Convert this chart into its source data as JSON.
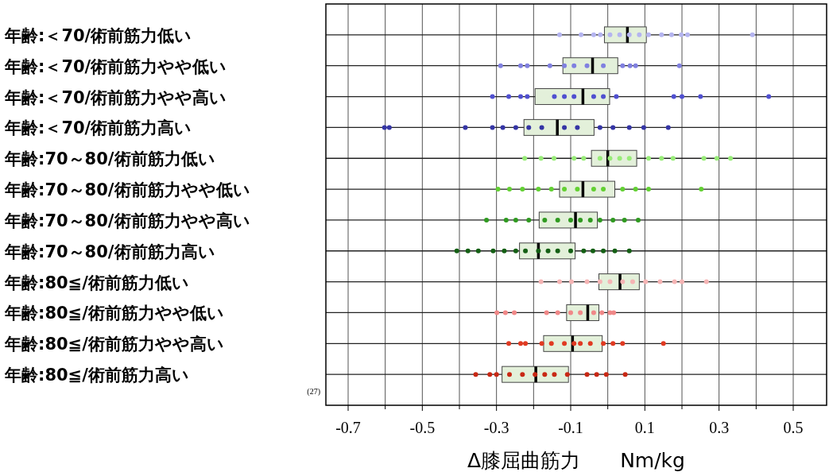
{
  "chart_data": {
    "type": "box",
    "orientation": "horizontal",
    "categories": [
      "年齢:＜70/術前筋力低い",
      "年齢:＜70/術前筋力やや低い",
      "年齢:＜70/術前筋力やや高い",
      "年齢:＜70/術前筋力高い",
      "年齢:70～80/術前筋力低い",
      "年齢:70～80/術前筋力やや低い",
      "年齢:70～80/術前筋力やや高い",
      "年齢:70～80/術前筋力高い",
      "年齢:80≦/術前筋力低い",
      "年齢:80≦/術前筋力やや低い",
      "年齢:80≦/術前筋力やや高い",
      "年齢:80≦/術前筋力高い"
    ],
    "xlabel": "Δ膝屈曲筋力　　Nm/kg",
    "annotations": [
      "(27)"
    ],
    "xlim": [
      -0.76,
      0.59
    ],
    "xticks": [
      -0.7,
      {
        "value": -0.6,
        "label": null
      },
      -0.5,
      {
        "value": -0.4,
        "label": null
      },
      -0.3,
      {
        "value": -0.2,
        "label": null
      },
      -0.1,
      {
        "value": 0,
        "label": null
      },
      0.1,
      {
        "value": 0.2,
        "label": null
      },
      0.3,
      {
        "value": 0.4,
        "label": null
      },
      0.5
    ],
    "grid": true,
    "marker": "circle",
    "series": [
      {
        "type": "box",
        "color": "#e3f0da",
        "boxes": [
          {
            "low": -0.009,
            "q1": -0.009,
            "median": 0.053,
            "q3": 0.104,
            "high": 0.104
          },
          {
            "low": -0.121,
            "q1": -0.121,
            "median": -0.041,
            "q3": 0.027,
            "high": 0.027
          },
          {
            "low": -0.196,
            "q1": -0.196,
            "median": -0.067,
            "q3": 0.005,
            "high": 0.005
          },
          {
            "low": -0.226,
            "q1": -0.226,
            "median": -0.136,
            "q3": -0.037,
            "high": -0.037
          },
          {
            "low": -0.044,
            "q1": -0.044,
            "median": 0.0,
            "q3": 0.078,
            "high": 0.078
          },
          {
            "low": -0.13,
            "q1": -0.13,
            "median": -0.067,
            "q3": 0.019,
            "high": 0.019
          },
          {
            "low": -0.185,
            "q1": -0.185,
            "median": -0.087,
            "q3": -0.028,
            "high": -0.028
          },
          {
            "low": -0.238,
            "q1": -0.238,
            "median": -0.187,
            "q3": -0.088,
            "high": -0.088
          },
          {
            "low": -0.024,
            "q1": -0.024,
            "median": 0.033,
            "q3": 0.085,
            "high": 0.085
          },
          {
            "low": -0.111,
            "q1": -0.111,
            "median": -0.054,
            "q3": -0.024,
            "high": -0.024
          },
          {
            "low": -0.173,
            "q1": -0.173,
            "median": -0.095,
            "q3": -0.015,
            "high": -0.015
          },
          {
            "low": -0.285,
            "q1": -0.285,
            "median": -0.194,
            "q3": -0.106,
            "high": -0.106
          }
        ]
      },
      {
        "type": "scatter",
        "color": "#b4b4f0",
        "x": [
          "年齢:＜70/術前筋力低い",
          "年齢:＜70/術前筋力低い",
          "年齢:＜70/術前筋力低い",
          "年齢:＜70/術前筋力低い",
          "年齢:＜70/術前筋力低い",
          "年齢:＜70/術前筋力低い",
          "年齢:＜70/術前筋力低い",
          "年齢:＜70/術前筋力低い",
          "年齢:＜70/術前筋力低い",
          "年齢:＜70/術前筋力低い",
          "年齢:＜70/術前筋力低い",
          "年齢:＜70/術前筋力低い",
          "年齢:＜70/術前筋力低い",
          "年齢:＜70/術前筋力低い"
        ],
        "values": [
          -0.13,
          -0.072,
          -0.038,
          -0.02,
          0.006,
          0.032,
          0.058,
          0.085,
          0.11,
          0.145,
          0.172,
          0.198,
          0.215,
          0.39
        ]
      },
      {
        "type": "scatter",
        "color": "#8080e0",
        "x": [
          "年齢:＜70/術前筋力やや低い",
          "年齢:＜70/術前筋力やや低い",
          "年齢:＜70/術前筋力やや低い",
          "年齢:＜70/術前筋力やや低い",
          "年齢:＜70/術前筋力やや低い",
          "年齢:＜70/術前筋力やや低い",
          "年齢:＜70/術前筋力やや低い",
          "年齢:＜70/術前筋力やや低い",
          "年齢:＜70/術前筋力やや低い",
          "年齢:＜70/術前筋力やや低い",
          "年齢:＜70/術前筋力やや低い",
          "年齢:＜70/術前筋力やや低い"
        ],
        "values": [
          -0.289,
          -0.235,
          -0.217,
          -0.156,
          -0.117,
          -0.091,
          -0.056,
          -0.012,
          0.04,
          0.06,
          0.075,
          0.193
        ]
      },
      {
        "type": "scatter",
        "color": "#5050d0",
        "x": [
          "年齢:＜70/術前筋力やや高い",
          "年齢:＜70/術前筋力やや高い",
          "年齢:＜70/術前筋力やや高い",
          "年齢:＜70/術前筋力やや高い",
          "年齢:＜70/術前筋力やや高い",
          "年齢:＜70/術前筋力やや高い",
          "年齢:＜70/術前筋力やや高い",
          "年齢:＜70/術前筋力やや高い",
          "年齢:＜70/術前筋力やや高い",
          "年齢:＜70/術前筋力やや高い",
          "年齢:＜70/術前筋力やや高い",
          "年齢:＜70/術前筋力やや高い",
          "年齢:＜70/術前筋力やや高い",
          "年齢:＜70/術前筋力やや高い"
        ],
        "values": [
          -0.311,
          -0.267,
          -0.235,
          -0.217,
          -0.144,
          -0.117,
          -0.091,
          -0.038,
          -0.012,
          0.023,
          0.178,
          0.2,
          0.25,
          0.434
        ]
      },
      {
        "type": "scatter",
        "color": "#3535a5",
        "x": [
          "年齢:＜70/術前筋力高い",
          "年齢:＜70/術前筋力高い",
          "年齢:＜70/術前筋力高い",
          "年齢:＜70/術前筋力高い",
          "年齢:＜70/術前筋力高い",
          "年齢:＜70/術前筋力高い",
          "年齢:＜70/術前筋力高い",
          "年齢:＜70/術前筋力高い",
          "年齢:＜70/術前筋力高い",
          "年齢:＜70/術前筋力高い",
          "年齢:＜70/術前筋力高い",
          "年齢:＜70/術前筋力高い",
          "年齢:＜70/術前筋力高い",
          "年齢:＜70/術前筋力高い",
          "年齢:＜70/術前筋力高い"
        ],
        "values": [
          -0.602,
          -0.589,
          -0.384,
          -0.311,
          -0.283,
          -0.248,
          -0.213,
          -0.178,
          -0.117,
          -0.082,
          -0.021,
          0.014,
          0.058,
          0.097,
          0.163
        ]
      },
      {
        "type": "scatter",
        "color": "#98ec78",
        "x": [
          "年齢:70～80/術前筋力低い",
          "年齢:70～80/術前筋力低い",
          "年齢:70～80/術前筋力低い",
          "年齢:70～80/術前筋力低い",
          "年齢:70～80/術前筋力低い",
          "年齢:70～80/術前筋力低い",
          "年齢:70～80/術前筋力低い",
          "年齢:70～80/術前筋力低い",
          "年齢:70～80/術前筋力低い",
          "年齢:70～80/術前筋力低い",
          "年齢:70～80/術前筋力低い",
          "年齢:70～80/術前筋力低い",
          "年齢:70～80/術前筋力低い",
          "年齢:70～80/術前筋力低い",
          "年齢:70～80/術前筋力低い"
        ],
        "values": [
          -0.224,
          -0.18,
          -0.145,
          -0.091,
          -0.065,
          -0.021,
          0.006,
          0.032,
          0.058,
          0.11,
          0.145,
          0.176,
          0.259,
          0.294,
          0.331
        ]
      },
      {
        "type": "scatter",
        "color": "#62d032",
        "x": [
          "年齢:70～80/術前筋力やや低い",
          "年齢:70～80/術前筋力やや低い",
          "年齢:70～80/術前筋力やや低い",
          "年齢:70～80/術前筋力やや低い",
          "年齢:70～80/術前筋力やや低い",
          "年齢:70～80/術前筋力やや低い",
          "年齢:70～80/術前筋力やや低い",
          "年齢:70～80/術前筋力やや低い",
          "年齢:70～80/術前筋力やや低い",
          "年齢:70～80/術前筋力やや低い",
          "年齢:70～80/術前筋力やや低い",
          "年齢:70～80/術前筋力やや低い",
          "年齢:70～80/術前筋力やや低い"
        ],
        "values": [
          -0.296,
          -0.265,
          -0.23,
          -0.187,
          -0.152,
          -0.117,
          -0.082,
          -0.038,
          -0.012,
          0.04,
          0.075,
          0.11,
          0.252
        ]
      },
      {
        "type": "scatter",
        "color": "#2f9a20",
        "x": [
          "年齢:70～80/術前筋力やや高い",
          "年齢:70～80/術前筋力やや高い",
          "年齢:70～80/術前筋力やや高い",
          "年齢:70～80/術前筋力やや高い",
          "年齢:70～80/術前筋力やや高い",
          "年齢:70～80/術前筋力やや高い",
          "年齢:70～80/術前筋力やや高い",
          "年齢:70～80/術前筋力やや高い",
          "年齢:70～80/術前筋力やや高い",
          "年齢:70～80/術前筋力やや高い",
          "年齢:70～80/術前筋力やや高い",
          "年齢:70～80/術前筋力やや高い",
          "年齢:70～80/術前筋力やや高い"
        ],
        "values": [
          -0.327,
          -0.274,
          -0.248,
          -0.213,
          -0.17,
          -0.135,
          -0.1,
          -0.074,
          -0.047,
          -0.021,
          0.014,
          0.045,
          0.082
        ]
      },
      {
        "type": "scatter",
        "color": "#145f14",
        "x": [
          "年齢:70～80/術前筋力高い",
          "年齢:70～80/術前筋力高い",
          "年齢:70～80/術前筋力高い",
          "年齢:70～80/術前筋力高い",
          "年齢:70～80/術前筋力高い",
          "年齢:70～80/術前筋力高い",
          "年齢:70～80/術前筋力高い",
          "年齢:70～80/術前筋力高い",
          "年齢:70～80/術前筋力高い",
          "年齢:70～80/術前筋力高い",
          "年齢:70～80/術前筋力高い",
          "年齢:70～80/術前筋力高い",
          "年齢:70～80/術前筋力高い",
          "年齢:70～80/術前筋力高い",
          "年齢:70～80/術前筋力高い",
          "年齢:70～80/術前筋力高い"
        ],
        "values": [
          -0.407,
          -0.377,
          -0.349,
          -0.309,
          -0.279,
          -0.248,
          -0.222,
          -0.187,
          -0.161,
          -0.135,
          -0.1,
          -0.065,
          -0.04,
          -0.012,
          0.019,
          0.058
        ]
      },
      {
        "type": "scatter",
        "color": "#f5b4b4",
        "x": [
          "年齢:80≦/術前筋力低い",
          "年齢:80≦/術前筋力低い",
          "年齢:80≦/術前筋力低い",
          "年齢:80≦/術前筋力低い",
          "年齢:80≦/術前筋力低い",
          "年齢:80≦/術前筋力低い",
          "年齢:80≦/術前筋力低い",
          "年齢:80≦/術前筋力低い",
          "年齢:80≦/術前筋力低い",
          "年齢:80≦/術前筋力低い",
          "年齢:80≦/術前筋力低い",
          "年齢:80≦/術前筋力低い",
          "年齢:80≦/術前筋力低い"
        ],
        "values": [
          -0.18,
          -0.13,
          -0.098,
          -0.056,
          -0.021,
          0.006,
          0.04,
          0.067,
          0.102,
          0.141,
          0.18,
          0.2,
          0.266
        ]
      },
      {
        "type": "scatter",
        "color": "#f08888",
        "x": [
          "年齢:80≦/術前筋力やや低い",
          "年齢:80≦/術前筋力やや低い",
          "年齢:80≦/術前筋力やや低い",
          "年齢:80≦/術前筋力やや低い",
          "年齢:80≦/術前筋力やや低い",
          "年齢:80≦/術前筋力やや低い",
          "年齢:80≦/術前筋力やや低い",
          "年齢:80≦/術前筋力やや低い",
          "年齢:80≦/術前筋力やや低い",
          "年齢:80≦/術前筋力やや低い",
          "年齢:80≦/術前筋力やや低い"
        ],
        "values": [
          -0.299,
          -0.276,
          -0.252,
          -0.165,
          -0.135,
          -0.1,
          -0.074,
          -0.038,
          -0.016,
          0.006,
          0.016
        ]
      },
      {
        "type": "scatter",
        "color": "#e03a22",
        "x": [
          "年齢:80≦/術前筋力やや高い",
          "年齢:80≦/術前筋力やや高い",
          "年齢:80≦/術前筋力やや高い",
          "年齢:80≦/術前筋力やや高い",
          "年齢:80≦/術前筋力やや高い",
          "年齢:80≦/術前筋力やや高い",
          "年齢:80≦/術前筋力やや高い",
          "年齢:80≦/術前筋力やや高い",
          "年齢:80≦/術前筋力やや高い",
          "年齢:80≦/術前筋力やや高い",
          "年齢:80≦/術前筋力やや高い",
          "年齢:80≦/術前筋力やや高い",
          "年齢:80≦/術前筋力やや高い"
        ],
        "values": [
          -0.267,
          -0.235,
          -0.222,
          -0.178,
          -0.152,
          -0.117,
          -0.091,
          -0.074,
          -0.047,
          -0.012,
          0.014,
          0.04,
          0.15
        ]
      },
      {
        "type": "scatter",
        "color": "#c82814",
        "x": [
          "年齢:80≦/術前筋力高い",
          "年齢:80≦/術前筋力高い",
          "年齢:80≦/術前筋力高い",
          "年齢:80≦/術前筋力高い",
          "年齢:80≦/術前筋力高い",
          "年齢:80≦/術前筋力高い",
          "年齢:80≦/術前筋力高い",
          "年齢:80≦/術前筋力高い",
          "年齢:80≦/術前筋力高い",
          "年齢:80≦/術前筋力高い",
          "年齢:80≦/術前筋力高い",
          "年齢:80≦/術前筋力高い",
          "年齢:80≦/術前筋力高い"
        ],
        "values": [
          -0.356,
          -0.318,
          -0.3,
          -0.265,
          -0.23,
          -0.196,
          -0.17,
          -0.144,
          -0.109,
          -0.056,
          -0.03,
          -0.004,
          0.047
        ]
      }
    ]
  }
}
